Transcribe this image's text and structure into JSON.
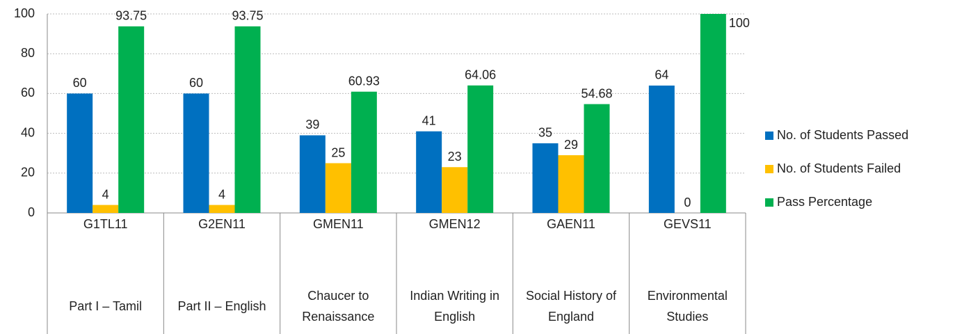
{
  "chart_data": {
    "type": "bar",
    "categories": [
      "G1TL11",
      "G2EN11",
      "GMEN11",
      "GMEN12",
      "GAEN11",
      "GEVS11"
    ],
    "subcategories": [
      "Part I – Tamil",
      "Part II – English",
      "Chaucer to Renaissance",
      "Indian Writing in English",
      "Social History of England",
      "Environmental Studies"
    ],
    "series": [
      {
        "name": "No. of Students Passed",
        "color": "#0070c0",
        "values": [
          60,
          60,
          39,
          41,
          35,
          64
        ]
      },
      {
        "name": "No. of Students Failed",
        "color": "#ffc000",
        "values": [
          4,
          4,
          25,
          23,
          29,
          0
        ]
      },
      {
        "name": "Pass Percentage",
        "color": "#00b050",
        "values": [
          93.75,
          93.75,
          60.93,
          64.06,
          54.68,
          100
        ]
      }
    ],
    "ylim": [
      0,
      100
    ],
    "yticks": [
      0,
      20,
      40,
      60,
      80,
      100
    ],
    "grid": true,
    "legend": "right"
  }
}
